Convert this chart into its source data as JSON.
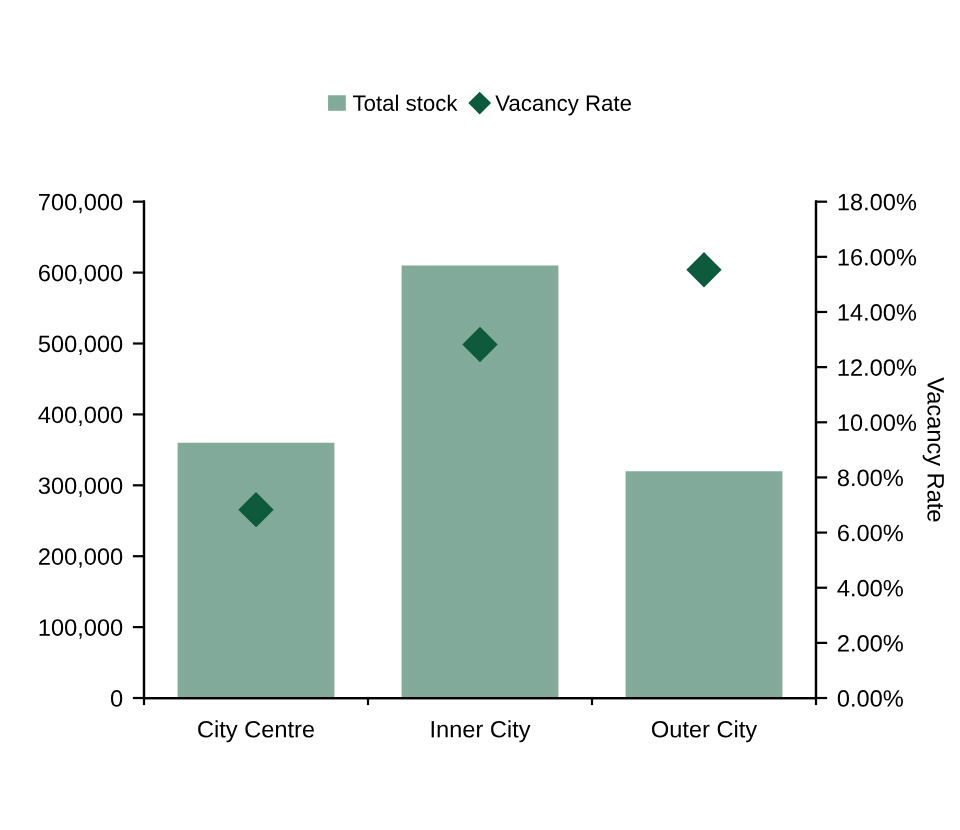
{
  "chart_data": {
    "type": "bar",
    "categories": [
      "City Centre",
      "Inner City",
      "Outer City"
    ],
    "series": [
      {
        "name": "Total stock",
        "color": "#82aa9a",
        "values": [
          360000,
          610000,
          320000
        ]
      },
      {
        "name": "Vacancy Rate",
        "type": "scatter",
        "axis": "y2",
        "marker": "diamond",
        "color": "#0e5a3c",
        "values": [
          6.83,
          12.82,
          15.53
        ]
      }
    ],
    "ylim": [
      0,
      700000
    ],
    "yticks": [
      {
        "value": 0,
        "label": "0"
      },
      {
        "value": 100000,
        "label": "100,000"
      },
      {
        "value": 200000,
        "label": "200,000"
      },
      {
        "value": 300000,
        "label": "300,000"
      },
      {
        "value": 400000,
        "label": "400,000"
      },
      {
        "value": 500000,
        "label": "500,000"
      },
      {
        "value": 600000,
        "label": "600,000"
      },
      {
        "value": 700000,
        "label": "700,000"
      }
    ],
    "y2lim": [
      0,
      18
    ],
    "y2ticks": [
      {
        "value": 0,
        "label": "0.00%"
      },
      {
        "value": 2,
        "label": "2.00%"
      },
      {
        "value": 4,
        "label": "4.00%"
      },
      {
        "value": 6,
        "label": "6.00%"
      },
      {
        "value": 8,
        "label": "8.00%"
      },
      {
        "value": 10,
        "label": "10.00%"
      },
      {
        "value": 12,
        "label": "12.00%"
      },
      {
        "value": 14,
        "label": "14.00%"
      },
      {
        "value": 16,
        "label": "16.00%"
      },
      {
        "value": 18,
        "label": "18.00%"
      }
    ],
    "y2label": "Vacancy Rate",
    "legend": "top",
    "grid": false
  }
}
